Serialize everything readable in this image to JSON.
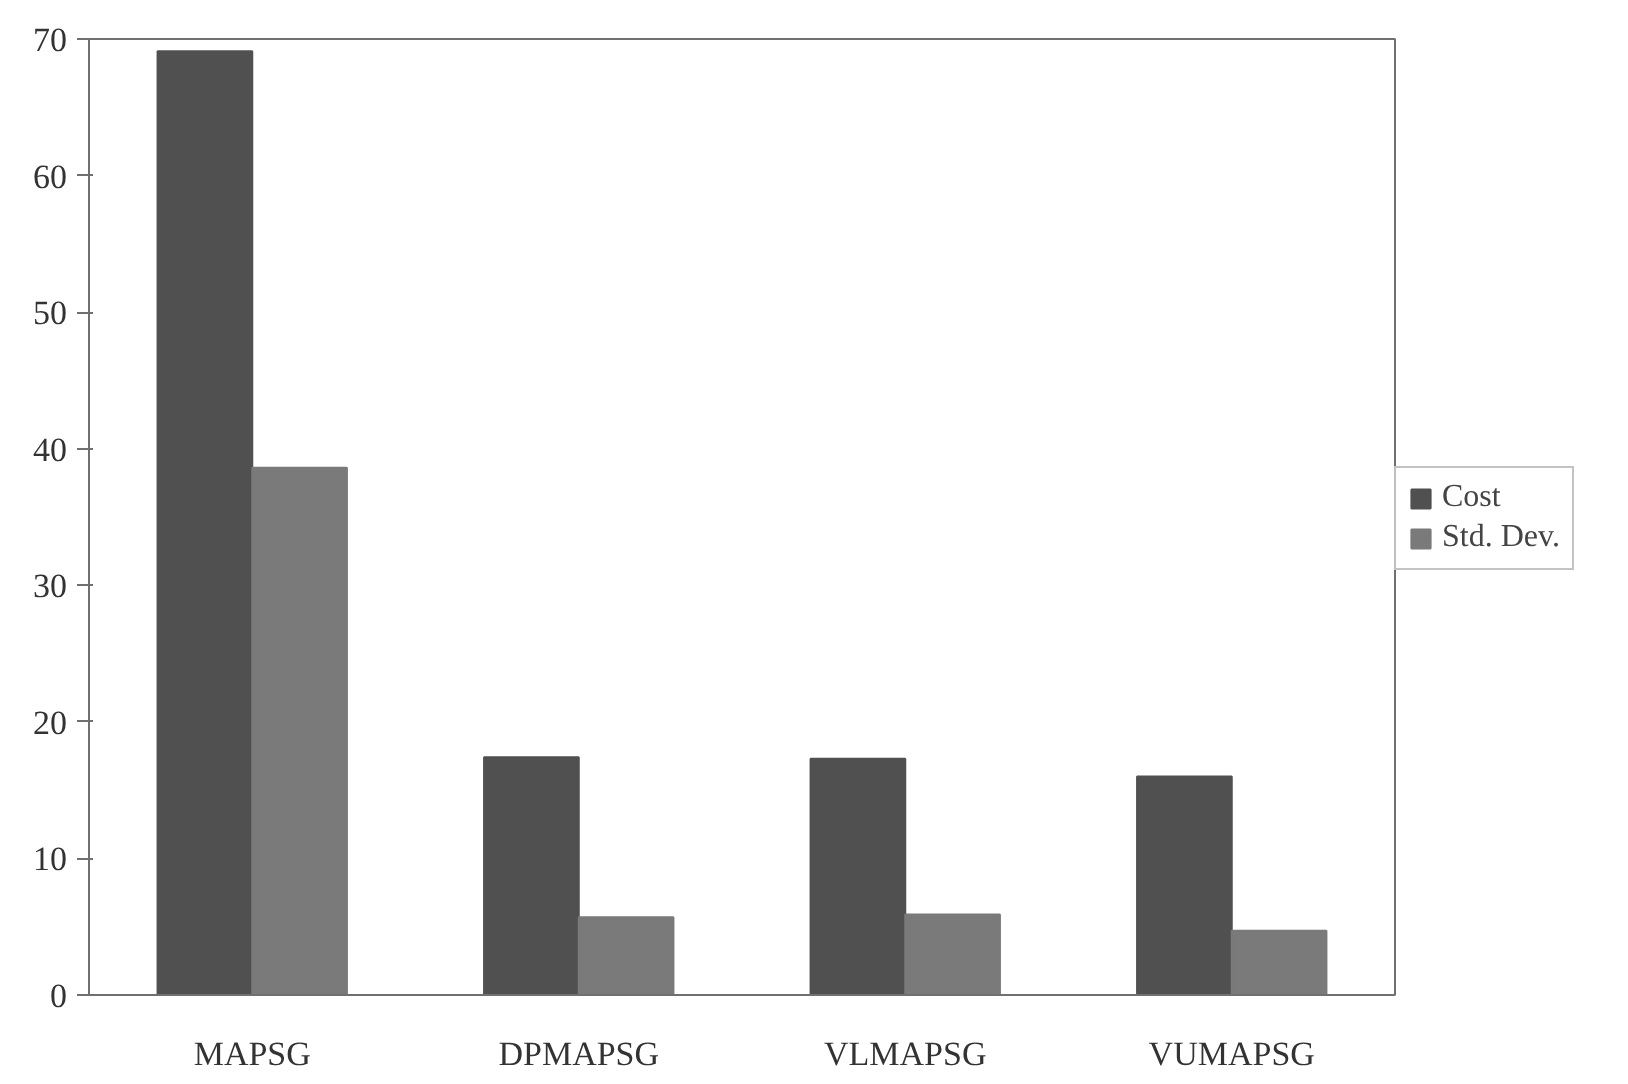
{
  "chart_data": {
    "type": "bar",
    "categories": [
      "MAPSG",
      "DPMAPSG",
      "VLMAPSG",
      "VUMAPSG"
    ],
    "series": [
      {
        "name": "Cost",
        "color": "#505050",
        "values": [
          69.1,
          17.4,
          17.3,
          16.0
        ]
      },
      {
        "name": "Std. Dev.",
        "color": "#7a7a7a",
        "values": [
          38.6,
          5.7,
          5.9,
          4.7
        ]
      }
    ],
    "ylim": [
      0,
      70
    ],
    "yticks": [
      0,
      10,
      20,
      30,
      40,
      50,
      60,
      70
    ],
    "grid": false,
    "legend": "right"
  }
}
